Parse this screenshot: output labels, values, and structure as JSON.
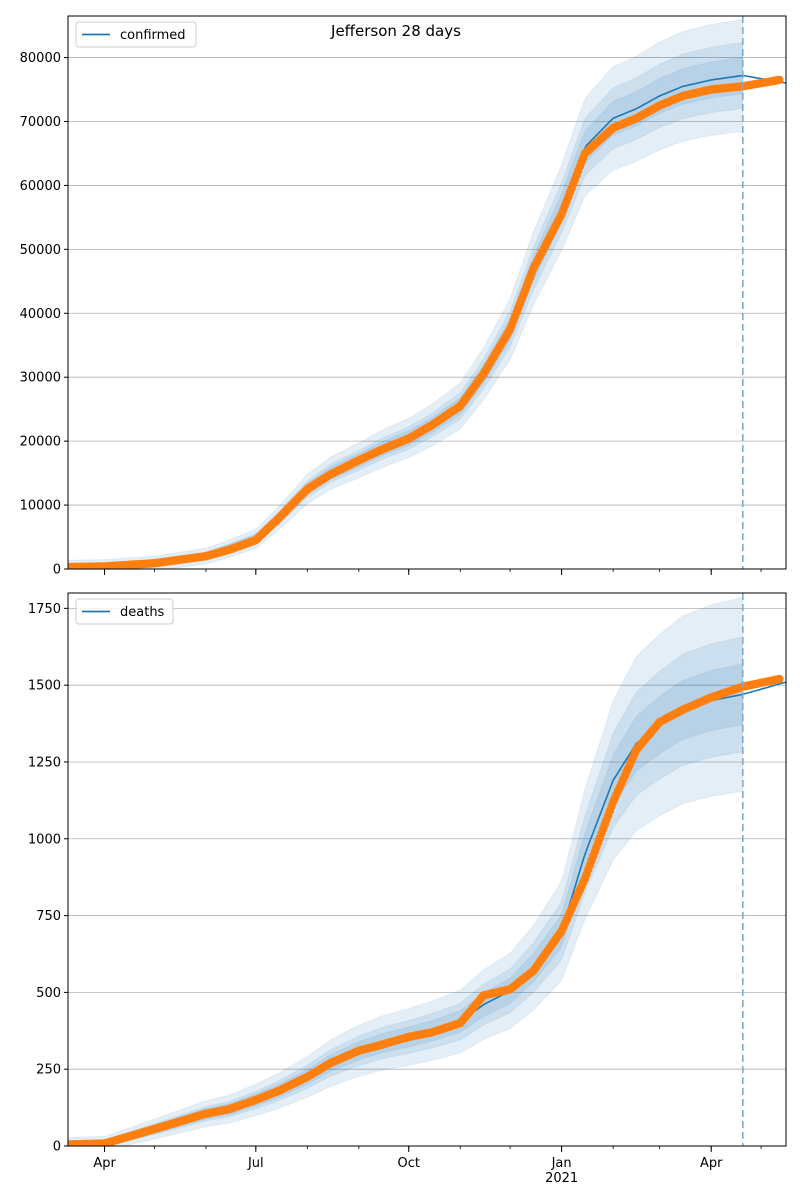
{
  "title": "Jefferson 28 days",
  "colors": {
    "line": "#1f77b4",
    "dots": "#ff7f0e",
    "band": "#1f77b4",
    "vline": "#7fa9cf",
    "grid": "#b0b0b0"
  },
  "x_ticks": [
    {
      "label": "Apr",
      "date": "2020-04-01"
    },
    {
      "label": "Jul",
      "date": "2020-07-01"
    },
    {
      "label": "Oct",
      "date": "2020-10-01"
    },
    {
      "label": "Jan",
      "date": "2021-01-01",
      "sublabel": "2021"
    },
    {
      "label": "Apr",
      "date": "2021-04-01"
    }
  ],
  "chart_data": [
    {
      "type": "line",
      "legend": "confirmed",
      "legend_position": "top-left",
      "grid": "horizontal",
      "xlim": [
        "2020-03-10",
        "2021-05-16"
      ],
      "ylim": [
        0,
        86500
      ],
      "yticks": [
        0,
        10000,
        20000,
        30000,
        40000,
        50000,
        60000,
        70000,
        80000
      ],
      "forecast_date": "2021-04-20",
      "band_widths": [
        0.1,
        0.06,
        0.03
      ],
      "model": {
        "x": [
          "2020-03-10",
          "2020-04-01",
          "2020-05-01",
          "2020-06-01",
          "2020-06-15",
          "2020-07-01",
          "2020-07-15",
          "2020-08-01",
          "2020-08-15",
          "2020-09-01",
          "2020-09-15",
          "2020-10-01",
          "2020-10-15",
          "2020-11-01",
          "2020-11-15",
          "2020-12-01",
          "2020-12-15",
          "2021-01-01",
          "2021-01-15",
          "2021-02-01",
          "2021-02-15",
          "2021-03-01",
          "2021-03-15",
          "2021-04-01",
          "2021-04-20",
          "2021-05-16"
        ],
        "y": [
          300,
          400,
          900,
          2000,
          3200,
          4700,
          8000,
          12500,
          15000,
          17000,
          18800,
          20500,
          22500,
          25500,
          30500,
          37500,
          47000,
          56500,
          66000,
          70500,
          72000,
          74000,
          75500,
          76500,
          77200,
          76000
        ]
      },
      "observed": {
        "x": [
          "2020-03-10",
          "2020-04-01",
          "2020-05-01",
          "2020-06-01",
          "2020-06-15",
          "2020-07-01",
          "2020-07-15",
          "2020-08-01",
          "2020-08-15",
          "2020-09-01",
          "2020-09-15",
          "2020-10-01",
          "2020-10-15",
          "2020-11-01",
          "2020-11-15",
          "2020-12-01",
          "2020-12-15",
          "2021-01-01",
          "2021-01-15",
          "2021-02-01",
          "2021-02-15",
          "2021-03-01",
          "2021-03-15",
          "2021-04-01",
          "2021-04-20",
          "2021-05-12"
        ],
        "y": [
          300,
          400,
          900,
          2000,
          3000,
          4500,
          8000,
          12500,
          14800,
          17000,
          18700,
          20400,
          22500,
          25500,
          30500,
          37500,
          47000,
          55500,
          65000,
          69000,
          70500,
          72500,
          74000,
          75000,
          75500,
          76500
        ]
      }
    },
    {
      "type": "line",
      "legend": "deaths",
      "legend_position": "top-left",
      "grid": "horizontal",
      "xlim": [
        "2020-03-10",
        "2021-05-16"
      ],
      "ylim": [
        0,
        1800
      ],
      "yticks": [
        0,
        250,
        500,
        750,
        1000,
        1250,
        1500,
        1750
      ],
      "forecast_date": "2021-04-20",
      "band_widths": [
        0.2,
        0.12,
        0.06
      ],
      "model": {
        "x": [
          "2020-03-10",
          "2020-04-01",
          "2020-05-01",
          "2020-06-01",
          "2020-06-15",
          "2020-07-01",
          "2020-07-15",
          "2020-08-01",
          "2020-08-15",
          "2020-09-01",
          "2020-09-15",
          "2020-10-01",
          "2020-10-15",
          "2020-11-01",
          "2020-11-15",
          "2020-12-01",
          "2020-12-15",
          "2021-01-01",
          "2021-01-15",
          "2021-02-01",
          "2021-02-15",
          "2021-03-01",
          "2021-03-15",
          "2021-04-01",
          "2021-04-20",
          "2021-05-16"
        ],
        "y": [
          5,
          8,
          55,
          105,
          120,
          150,
          180,
          225,
          270,
          310,
          335,
          355,
          375,
          405,
          460,
          505,
          580,
          700,
          950,
          1190,
          1310,
          1370,
          1420,
          1450,
          1470,
          1510
        ]
      },
      "observed": {
        "x": [
          "2020-03-10",
          "2020-04-01",
          "2020-05-01",
          "2020-06-01",
          "2020-06-15",
          "2020-07-01",
          "2020-07-15",
          "2020-08-01",
          "2020-08-15",
          "2020-09-01",
          "2020-09-15",
          "2020-10-01",
          "2020-10-15",
          "2020-11-01",
          "2020-11-15",
          "2020-12-01",
          "2020-12-15",
          "2021-01-01",
          "2021-01-15",
          "2021-02-01",
          "2021-02-15",
          "2021-03-01",
          "2021-03-15",
          "2021-04-01",
          "2021-04-20",
          "2021-05-12"
        ],
        "y": [
          5,
          8,
          55,
          105,
          120,
          150,
          180,
          225,
          270,
          310,
          330,
          355,
          370,
          400,
          490,
          510,
          570,
          700,
          870,
          1120,
          1290,
          1380,
          1420,
          1460,
          1495,
          1520
        ]
      }
    }
  ]
}
